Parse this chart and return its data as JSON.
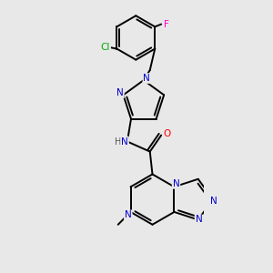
{
  "background_color": "#e8e8e8",
  "bond_color": "#000000",
  "atom_colors": {
    "N": "#0000cc",
    "O": "#ff0000",
    "F": "#ff00cc",
    "Cl": "#00aa00",
    "H": "#555555",
    "C": "#000000"
  },
  "figsize": [
    3.0,
    3.0
  ],
  "dpi": 100
}
